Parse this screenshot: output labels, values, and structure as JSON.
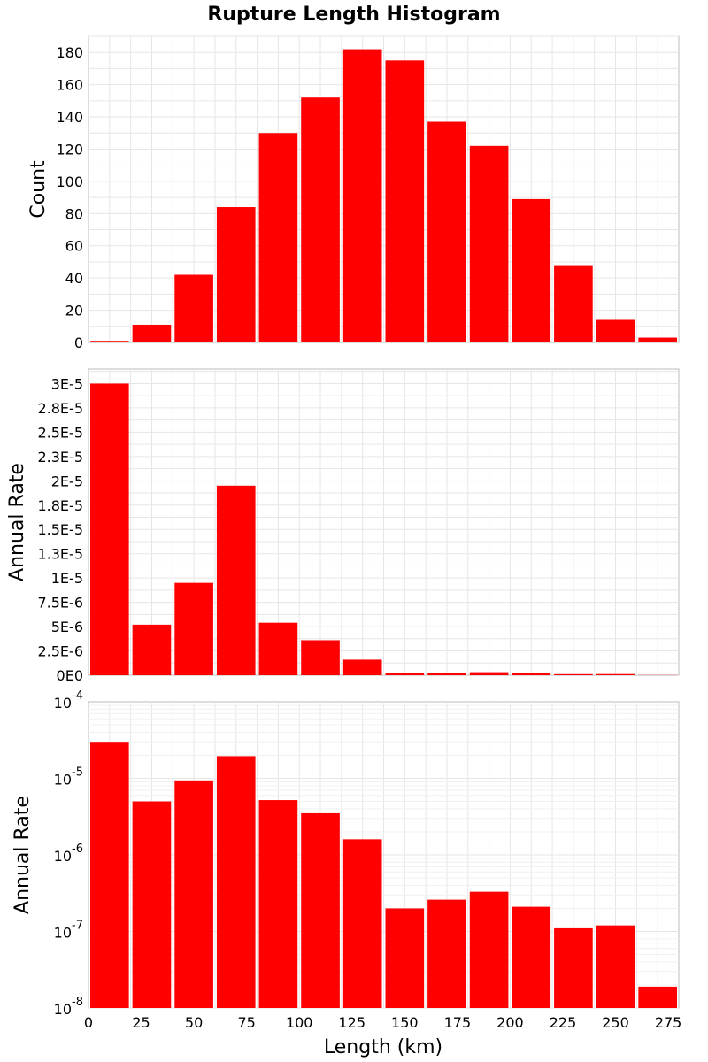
{
  "colors": {
    "bar": "#ff0000",
    "frame": "#bbbbbb",
    "grid": "#e6e6e6"
  },
  "chart_data": [
    {
      "type": "bar",
      "title": "Rupture Length Histogram",
      "xlabel": "",
      "ylabel": "Count",
      "xlim": [
        0,
        280
      ],
      "ylim": [
        0,
        190
      ],
      "bin_width": 20,
      "x": [
        10,
        30,
        50,
        70,
        90,
        110,
        130,
        150,
        170,
        190,
        210,
        230,
        250,
        270
      ],
      "values": [
        1,
        11,
        42,
        84,
        130,
        152,
        182,
        175,
        137,
        122,
        89,
        48,
        14,
        3
      ],
      "yticks": [
        0,
        20,
        40,
        60,
        80,
        100,
        120,
        140,
        160,
        180
      ],
      "ytick_labels": [
        "0",
        "20",
        "40",
        "60",
        "80",
        "100",
        "120",
        "140",
        "160",
        "180"
      ],
      "yscale": "linear",
      "grid": true
    },
    {
      "type": "bar",
      "title": "",
      "xlabel": "",
      "ylabel": "Annual Rate",
      "xlim": [
        0,
        280
      ],
      "ylim": [
        0,
        3.15e-05
      ],
      "bin_width": 20,
      "x": [
        10,
        30,
        50,
        70,
        90,
        110,
        130,
        150,
        170,
        190,
        210,
        230,
        250,
        270
      ],
      "values": [
        3e-05,
        5.2e-06,
        9.5e-06,
        1.95e-05,
        5.4e-06,
        3.6e-06,
        1.6e-06,
        2e-07,
        2.5e-07,
        3.1e-07,
        2.1e-07,
        1.1e-07,
        1.2e-07,
        2e-08
      ],
      "yticks": [
        0,
        2.5e-06,
        5e-06,
        7.5e-06,
        1e-05,
        1.25e-05,
        1.5e-05,
        1.75e-05,
        2e-05,
        2.25e-05,
        2.5e-05,
        2.75e-05,
        3e-05
      ],
      "ytick_labels": [
        "0E0",
        "2.5E-6",
        "5E-6",
        "7.5E-6",
        "1E-5",
        "1.3E-5",
        "1.5E-5",
        "1.8E-5",
        "2E-5",
        "2.3E-5",
        "2.5E-5",
        "2.8E-5",
        "3E-5"
      ],
      "yscale": "linear",
      "grid": true
    },
    {
      "type": "bar",
      "title": "",
      "xlabel": "Length (km)",
      "ylabel": "Annual Rate",
      "xlim": [
        0,
        280
      ],
      "ylim": [
        1e-08,
        0.0001
      ],
      "bin_width": 20,
      "x": [
        10,
        30,
        50,
        70,
        90,
        110,
        130,
        150,
        170,
        190,
        210,
        230,
        250,
        270
      ],
      "values": [
        3e-05,
        5e-06,
        9.4e-06,
        1.95e-05,
        5.2e-06,
        3.5e-06,
        1.6e-06,
        2e-07,
        2.6e-07,
        3.3e-07,
        2.1e-07,
        1.1e-07,
        1.2e-07,
        1.9e-08
      ],
      "yticks": [
        1e-08,
        1e-07,
        1e-06,
        1e-05,
        0.0001
      ],
      "ytick_bases": [
        "10",
        "10",
        "10",
        "10",
        "10"
      ],
      "ytick_exponents": [
        "-8",
        "-7",
        "-6",
        "-5",
        "-4"
      ],
      "yscale": "log",
      "xticks": [
        0,
        25,
        50,
        75,
        100,
        125,
        150,
        175,
        200,
        225,
        250,
        275
      ],
      "xtick_labels": [
        "0",
        "25",
        "50",
        "75",
        "100",
        "125",
        "150",
        "175",
        "200",
        "225",
        "250",
        "275"
      ],
      "grid": true
    }
  ]
}
